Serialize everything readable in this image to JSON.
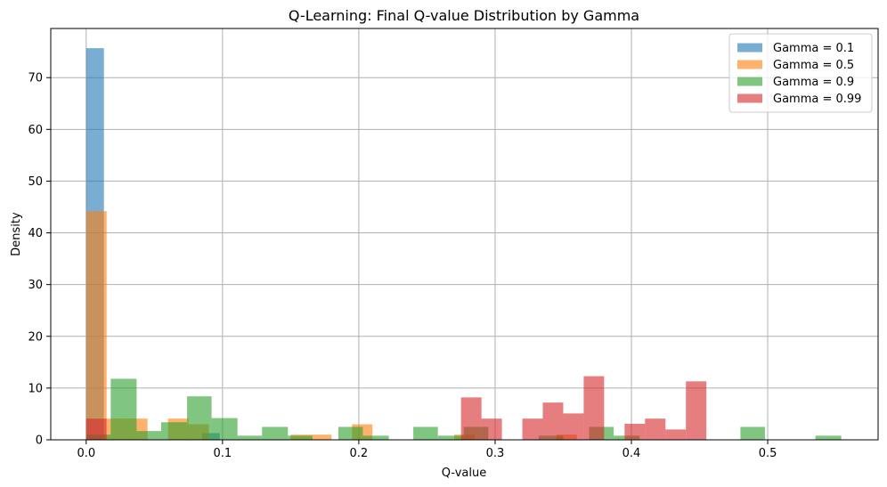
{
  "chart_data": {
    "type": "bar",
    "title": "Q-Learning: Final Q-value Distribution by Gamma",
    "xlabel": "Q-value",
    "ylabel": "Density",
    "xlim": [
      -0.026,
      0.581
    ],
    "ylim": [
      0,
      79.5
    ],
    "xticks": [
      0.0,
      0.1,
      0.2,
      0.3,
      0.4,
      0.5
    ],
    "xtick_labels": [
      "0.0",
      "0.1",
      "0.2",
      "0.3",
      "0.4",
      "0.5"
    ],
    "yticks": [
      0,
      10,
      20,
      30,
      40,
      50,
      60,
      70
    ],
    "ytick_labels": [
      "0",
      "10",
      "20",
      "30",
      "40",
      "50",
      "60",
      "70"
    ],
    "grid": true,
    "legend_position": "top-right",
    "series": [
      {
        "name": "Gamma = 0.1",
        "color": "#1f77b4",
        "bins": [
          [
            0.0,
            0.013,
            75.7
          ],
          [
            0.085,
            0.098,
            1.3
          ]
        ]
      },
      {
        "name": "Gamma = 0.5",
        "color": "#ff7f0e",
        "bins": [
          [
            0.0,
            0.015,
            44.2
          ],
          [
            0.015,
            0.03,
            4.1
          ],
          [
            0.03,
            0.045,
            4.1
          ],
          [
            0.06,
            0.075,
            4.1
          ],
          [
            0.075,
            0.09,
            3.0
          ],
          [
            0.15,
            0.165,
            1.0
          ],
          [
            0.165,
            0.18,
            1.0
          ],
          [
            0.195,
            0.21,
            3.0
          ],
          [
            0.27,
            0.285,
            1.0
          ],
          [
            0.345,
            0.36,
            1.0
          ]
        ]
      },
      {
        "name": "Gamma = 0.9",
        "color": "#2ca02c",
        "bins": [
          [
            0.0,
            0.018,
            1.0
          ],
          [
            0.018,
            0.037,
            11.8
          ],
          [
            0.037,
            0.055,
            1.7
          ],
          [
            0.055,
            0.074,
            3.4
          ],
          [
            0.074,
            0.092,
            8.4
          ],
          [
            0.092,
            0.111,
            4.2
          ],
          [
            0.111,
            0.129,
            0.8
          ],
          [
            0.129,
            0.148,
            2.5
          ],
          [
            0.148,
            0.166,
            0.8
          ],
          [
            0.185,
            0.203,
            2.5
          ],
          [
            0.203,
            0.222,
            0.8
          ],
          [
            0.24,
            0.258,
            2.5
          ],
          [
            0.258,
            0.277,
            0.8
          ],
          [
            0.277,
            0.295,
            2.5
          ],
          [
            0.332,
            0.35,
            0.8
          ],
          [
            0.369,
            0.387,
            2.5
          ],
          [
            0.387,
            0.406,
            0.8
          ],
          [
            0.48,
            0.498,
            2.5
          ],
          [
            0.535,
            0.554,
            0.8
          ]
        ]
      },
      {
        "name": "Gamma = 0.99",
        "color": "#d62728",
        "bins": [
          [
            0.0,
            0.015,
            4.1
          ],
          [
            0.275,
            0.29,
            8.2
          ],
          [
            0.29,
            0.305,
            4.1
          ],
          [
            0.32,
            0.335,
            4.1
          ],
          [
            0.335,
            0.35,
            7.2
          ],
          [
            0.35,
            0.365,
            5.1
          ],
          [
            0.365,
            0.38,
            12.3
          ],
          [
            0.395,
            0.41,
            3.1
          ],
          [
            0.41,
            0.425,
            4.1
          ],
          [
            0.425,
            0.44,
            2.0
          ],
          [
            0.44,
            0.455,
            11.3
          ]
        ]
      }
    ]
  }
}
